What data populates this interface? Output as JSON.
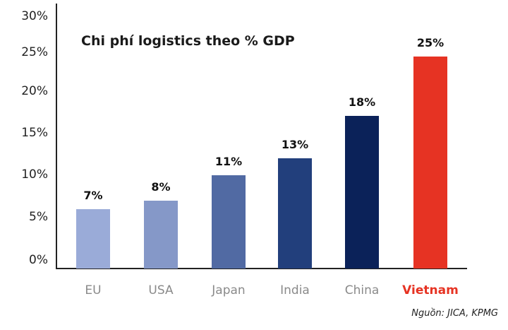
{
  "chart_data": {
    "type": "bar",
    "title": "Chi phí logistics theo % GDP",
    "categories": [
      "EU",
      "USA",
      "Japan",
      "India",
      "China",
      "Vietnam"
    ],
    "values": [
      7,
      8,
      11,
      13,
      18,
      25
    ],
    "data_labels": [
      "7%",
      "8%",
      "11%",
      "13%",
      "18%",
      "25%"
    ],
    "colors": [
      "#9aabd8",
      "#8598c8",
      "#516aa3",
      "#223f7c",
      "#0b2259",
      "#e63323"
    ],
    "highlight_category": "Vietnam",
    "highlight_color": "#e63323",
    "ylim": [
      0,
      30
    ],
    "yticks": [
      "0%",
      "5%",
      "10%",
      "15%",
      "20%",
      "25%",
      "30%"
    ],
    "grid": false,
    "source": "Nguồn: JICA, KPMG"
  }
}
